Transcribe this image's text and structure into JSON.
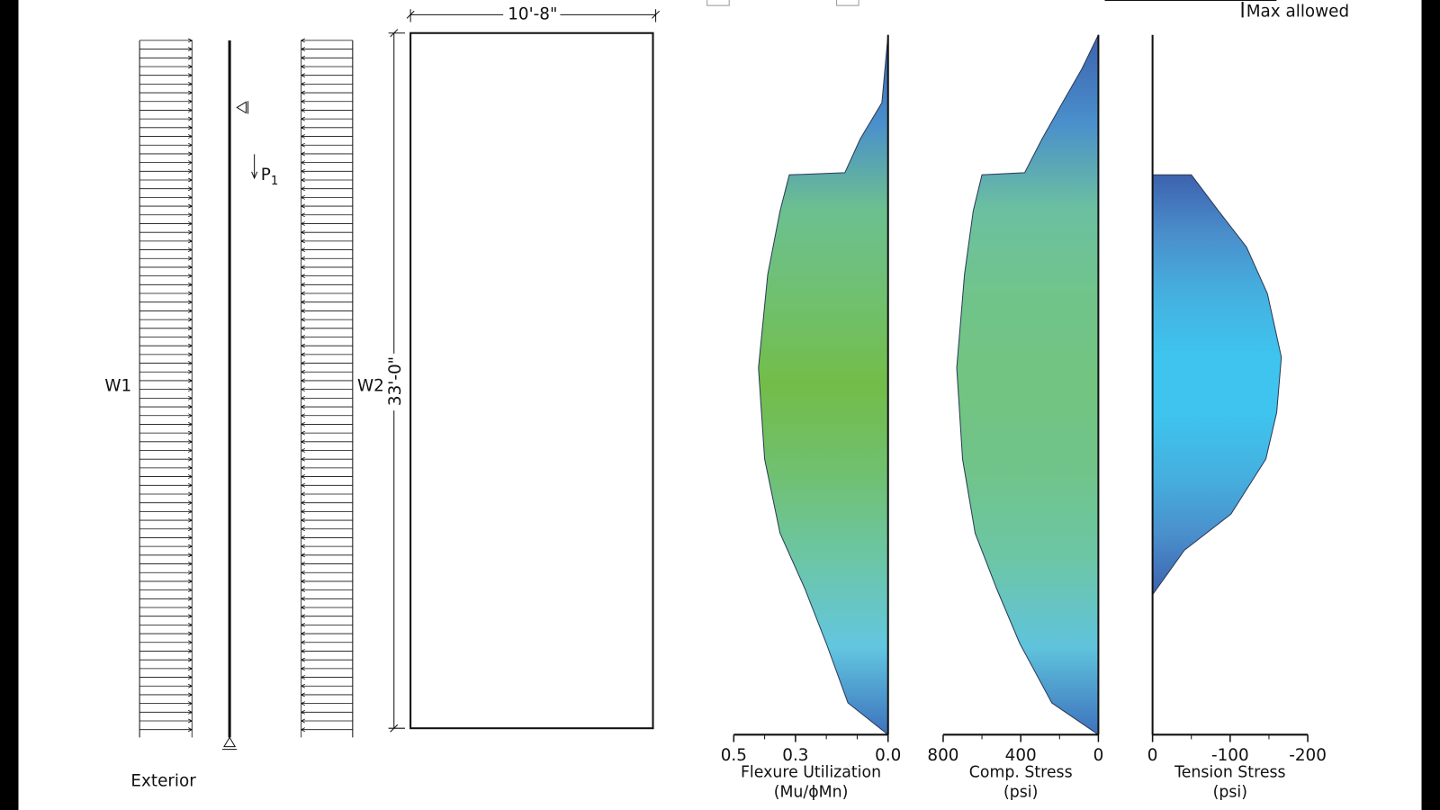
{
  "drawing": {
    "w1_label": "W1",
    "w2_label": "W2",
    "p_name": "P",
    "p_sub": "1",
    "side_label": "Exterior",
    "width_dim": "10'-8\"",
    "height_dim": "33'-0\"",
    "legend_label": "Max allowed"
  },
  "chart_data": [
    {
      "type": "area",
      "title": "Flexure Utilization",
      "subtitle": "(Mu/ϕMn)",
      "x": [
        33,
        29.8,
        28.1,
        26.5,
        26.4,
        24.7,
        21.7,
        17.3,
        13,
        9.5,
        6.9,
        4.3,
        1.5,
        0
      ],
      "values": [
        0,
        0.02,
        0.09,
        0.14,
        0.32,
        0.35,
        0.39,
        0.42,
        0.4,
        0.35,
        0.27,
        0.2,
        0.13,
        0
      ],
      "xlim": [
        0,
        33
      ],
      "ylim": [
        0,
        0.5
      ],
      "yticks": [
        0.5,
        0.3,
        {
          "value": 0,
          "label": "0.0"
        }
      ],
      "yminorticks": [
        0.4,
        0.2,
        0.1
      ],
      "gradient": [
        "#3d62ae",
        "#4a8fcc",
        "#6cc08f",
        "#70c070",
        "#72bd48",
        "#70c070",
        "#6cc6a6",
        "#62c6e0",
        "#3d72bd"
      ]
    },
    {
      "type": "area",
      "title": "Comp. Stress",
      "subtitle": "(psi)",
      "x": [
        33,
        31.4,
        29.8,
        28.1,
        26.5,
        26.4,
        24.7,
        21.7,
        17.3,
        13,
        9.5,
        6.9,
        4.3,
        1.5,
        0
      ],
      "values": [
        0,
        85,
        185,
        290,
        380,
        600,
        645,
        690,
        730,
        700,
        635,
        525,
        405,
        240,
        0
      ],
      "xlim": [
        0,
        33
      ],
      "ylim": [
        0,
        800
      ],
      "yticks": [
        800,
        400,
        0
      ],
      "yminorticks": [
        600,
        200
      ],
      "gradient": [
        "#3d62ae",
        "#4a8fcc",
        "#6cc0a0",
        "#70c48a",
        "#72c480",
        "#70c48a",
        "#6cc6a6",
        "#5fc3dc",
        "#3d72bd"
      ]
    },
    {
      "type": "area",
      "title": "Tension Stress",
      "subtitle": "(psi)",
      "x": [
        26.4,
        26.4,
        24.7,
        23,
        20.8,
        17.8,
        15.2,
        13,
        10.4,
        8.7,
        6.6
      ],
      "values": [
        0,
        -50,
        -85,
        -121,
        -148,
        -166,
        -160,
        -146,
        -101,
        -41,
        0
      ],
      "xlim": [
        0,
        33
      ],
      "ylim": [
        0,
        -200
      ],
      "yticks": [
        0,
        -100,
        -200
      ],
      "yminorticks": [
        -50,
        -150
      ],
      "gradient": [
        "#3d62ae",
        "#4a8fcc",
        "#45b0e0",
        "#3ec4ee",
        "#3ec4ee",
        "#45b0e0",
        "#4a8fcc",
        "#3d62ae"
      ]
    }
  ]
}
